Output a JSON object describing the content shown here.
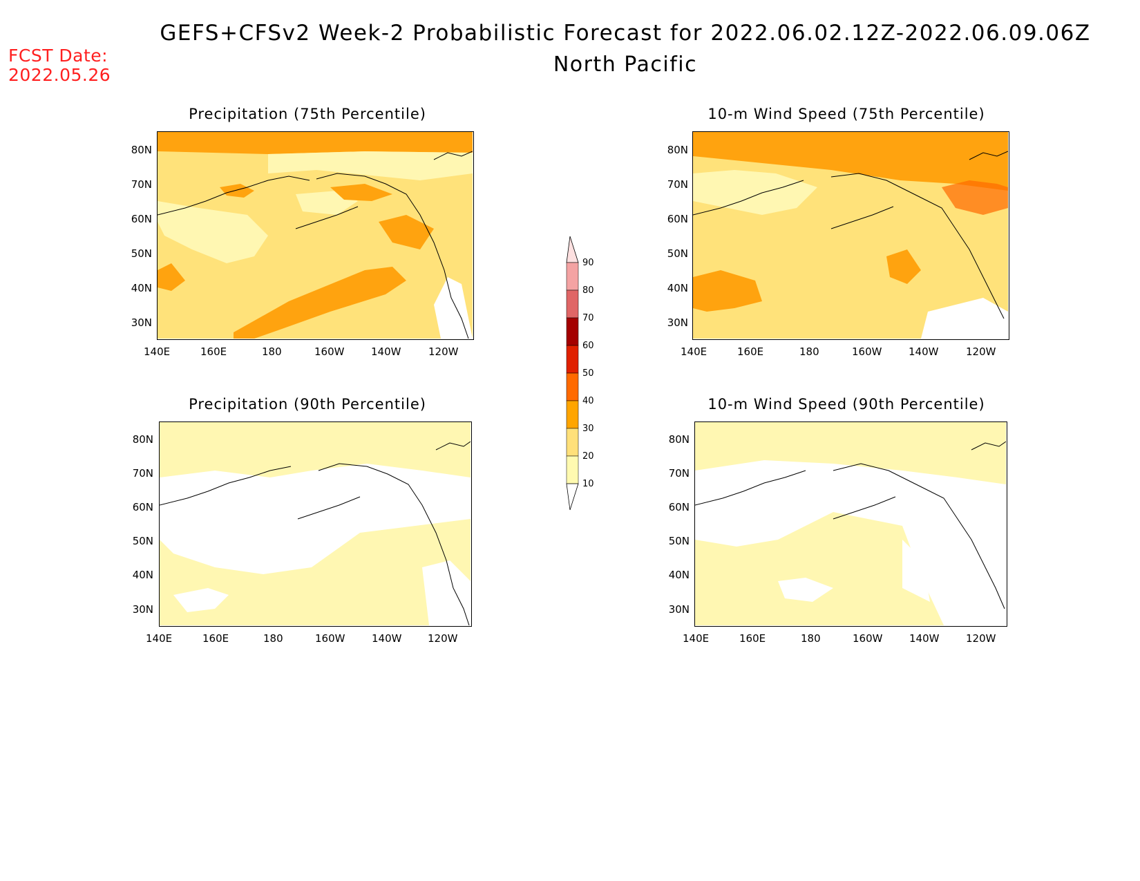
{
  "header": {
    "title": "GEFS+CFSv2 Week-2 Probabilistic Forecast for 2022.06.02.12Z-2022.06.09.06Z",
    "subtitle": "North Pacific",
    "fcst_label": "FCST Date:",
    "fcst_date": "2022.05.26"
  },
  "panels": [
    {
      "id": "precip75",
      "title": "Precipitation (75th Percentile)"
    },
    {
      "id": "wind75",
      "title": "10-m Wind Speed (75th Percentile)"
    },
    {
      "id": "precip90",
      "title": "Precipitation (90th Percentile)"
    },
    {
      "id": "wind90",
      "title": "10-m Wind Speed (90th Percentile)"
    }
  ],
  "axes": {
    "x_ticks": [
      "140E",
      "160E",
      "180",
      "160W",
      "140W",
      "120W"
    ],
    "y_ticks": [
      "80N",
      "70N",
      "60N",
      "50N",
      "40N",
      "30N"
    ]
  },
  "legend": {
    "labels": [
      "90",
      "80",
      "70",
      "60",
      "50",
      "40",
      "30",
      "20",
      "10"
    ],
    "colors": [
      "#fde0e0",
      "#f4a3a3",
      "#e06666",
      "#a40000",
      "#e02000",
      "#ff6a00",
      "#ffa500",
      "#ffe07a",
      "#fffab0"
    ]
  },
  "colors": {
    "c10": "#fff7b2",
    "c20": "#ffe27a",
    "c30": "#ffa30f",
    "c40": "#ff6a00",
    "fcst": "#ff2020"
  }
}
